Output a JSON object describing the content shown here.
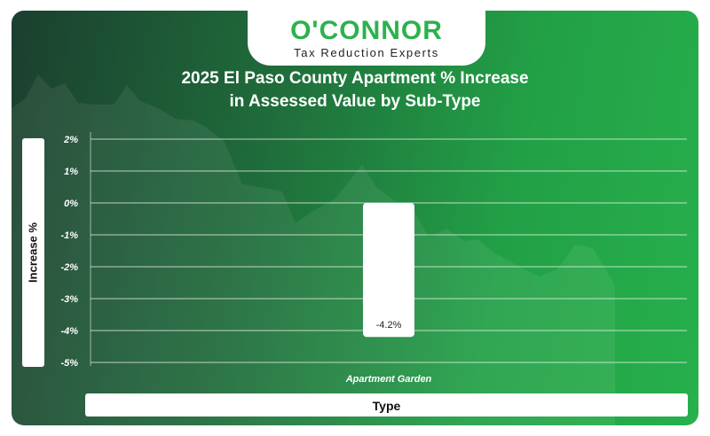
{
  "brand": {
    "name": "O'CONNOR",
    "tagline": "Tax Reduction Experts"
  },
  "chart_data": {
    "type": "bar",
    "title_line1": "2025 El Paso County Apartment % Increase",
    "title_line2": "in Assessed Value by Sub-Type",
    "xlabel": "Type",
    "ylabel": "Increase %",
    "categories": [
      "Apartment Garden"
    ],
    "values": [
      -4.2
    ],
    "data_labels": [
      "-4.2%"
    ],
    "yticks": [
      "2%",
      "1%",
      "0%",
      "-1%",
      "-2%",
      "-3%",
      "-4%",
      "-5%"
    ],
    "ylim": [
      -5,
      2
    ],
    "grid": true,
    "colors": {
      "bar": "#ffffff",
      "grid": "#ffffff",
      "text": "#ffffff"
    }
  }
}
